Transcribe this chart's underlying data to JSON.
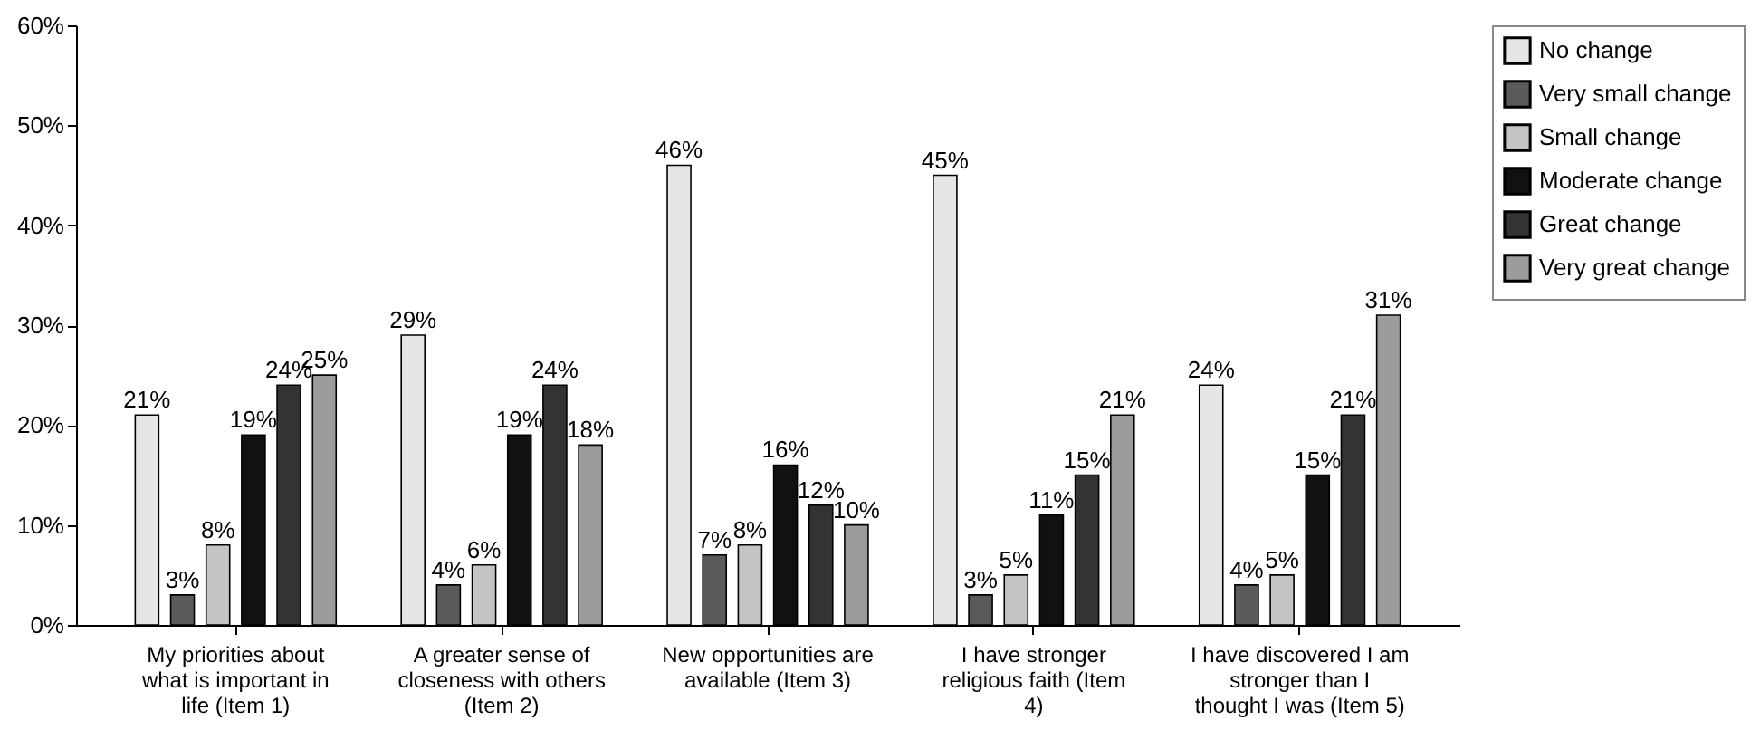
{
  "chart_data": {
    "type": "bar",
    "categories": [
      "My priorities about what is important in life (Item 1)",
      "A greater sense of closeness with others (Item 2)",
      "New opportunities are available (Item 3)",
      "I have stronger religious faith (Item 4)",
      "I have discovered I am stronger than I thought I was (Item 5)"
    ],
    "series": [
      {
        "name": "No change",
        "color": "#e6e6e6",
        "values": [
          21,
          29,
          46,
          45,
          24
        ],
        "value_labels": [
          "21%",
          "29%",
          "46%",
          "45%",
          "24%"
        ]
      },
      {
        "name": "Very small change",
        "color": "#5a5a5a",
        "values": [
          3,
          4,
          7,
          3,
          4
        ],
        "value_labels": [
          "3%",
          "4%",
          "7%",
          "3%",
          "4%"
        ]
      },
      {
        "name": "Small change",
        "color": "#c4c4c4",
        "values": [
          8,
          6,
          8,
          5,
          5
        ],
        "value_labels": [
          "8%",
          "6%",
          "8%",
          "5%",
          "5%"
        ]
      },
      {
        "name": "Moderate change",
        "color": "#111111",
        "values": [
          19,
          19,
          16,
          11,
          15
        ],
        "value_labels": [
          "19%",
          "19%",
          "16%",
          "11%",
          "15%"
        ]
      },
      {
        "name": "Great change",
        "color": "#333333",
        "values": [
          24,
          24,
          12,
          15,
          21
        ],
        "value_labels": [
          "24%",
          "24%",
          "12%",
          "15%",
          "21%"
        ]
      },
      {
        "name": "Very great change",
        "color": "#9c9c9c",
        "values": [
          25,
          18,
          10,
          21,
          31
        ],
        "value_labels": [
          "25%",
          "18%",
          "10%",
          "21%",
          "31%"
        ]
      }
    ],
    "ylim": [
      0,
      60
    ],
    "yticks": [
      {
        "value": 0,
        "label": "0%"
      },
      {
        "value": 10,
        "label": "10%"
      },
      {
        "value": 20,
        "label": "20%"
      },
      {
        "value": 30,
        "label": "30%"
      },
      {
        "value": 40,
        "label": "40%"
      },
      {
        "value": 50,
        "label": "50%"
      },
      {
        "value": 60,
        "label": "60%"
      }
    ],
    "grid": false,
    "legend": "right"
  }
}
